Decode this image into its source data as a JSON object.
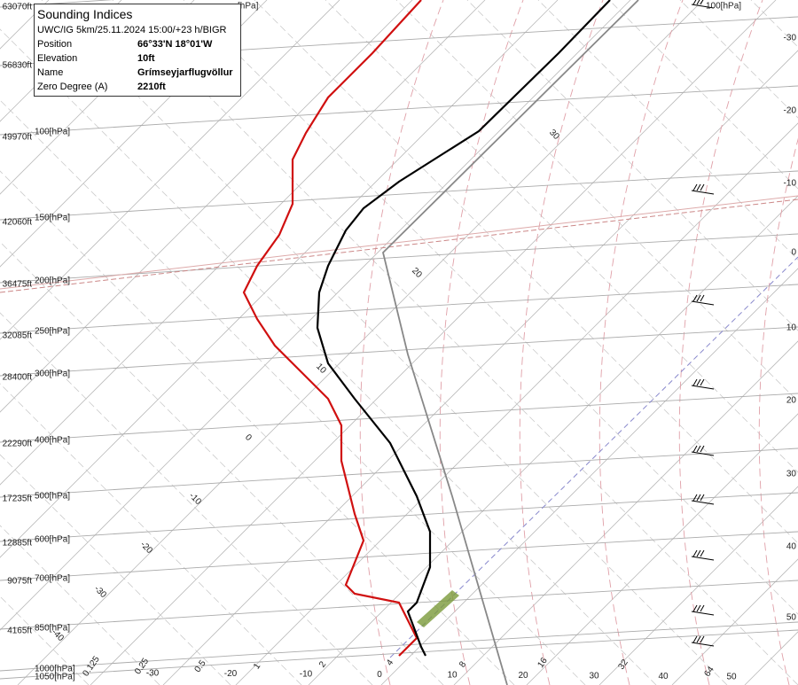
{
  "info": {
    "title": "Sounding Indices",
    "subtitle": "UWC/IG 5km/25.11.2024 15:00/+23 h/BIGR",
    "rows": [
      [
        "Position",
        "66°33'N 18°01'W"
      ],
      [
        "Elevation",
        "10ft"
      ],
      [
        "Name",
        "Grímseyjarflugvöllur"
      ],
      [
        "Zero Degree (A)",
        "2210ft"
      ]
    ]
  },
  "left_labels": {
    "altitudes": [
      "63070ft",
      "56830ft",
      "49970ft",
      "42060ft",
      "36475ft",
      "32085ft",
      "28400ft",
      "22290ft",
      "17235ft",
      "12885ft",
      "9075ft",
      "4165ft"
    ],
    "pressures": [
      "100[hPa]",
      "150[hPa]",
      "200[hPa]",
      "250[hPa]",
      "300[hPa]",
      "400[hPa]",
      "500[hPa]",
      "600[hPa]",
      "700[hPa]",
      "850[hPa]",
      "1000[hPa]",
      "1050[hPa]"
    ]
  },
  "top_labels": [
    "[hPa]",
    "100[hPa]"
  ],
  "right_labels": [
    "-30",
    "-20",
    "-10",
    "0",
    "10",
    "20",
    "30",
    "40",
    "50"
  ],
  "bottom_temperatures": [
    "-30",
    "-20",
    "-10",
    "0",
    "10",
    "20",
    "30",
    "40",
    "50"
  ],
  "mixing_ratios": [
    "0.125",
    "0.25",
    "0.5",
    "1",
    "2",
    "4",
    "8",
    "16",
    "32",
    "64"
  ],
  "isotherm_labels": [
    "30",
    "20",
    "10",
    "0",
    "-10",
    "-20",
    "-30",
    "-40"
  ]
}
